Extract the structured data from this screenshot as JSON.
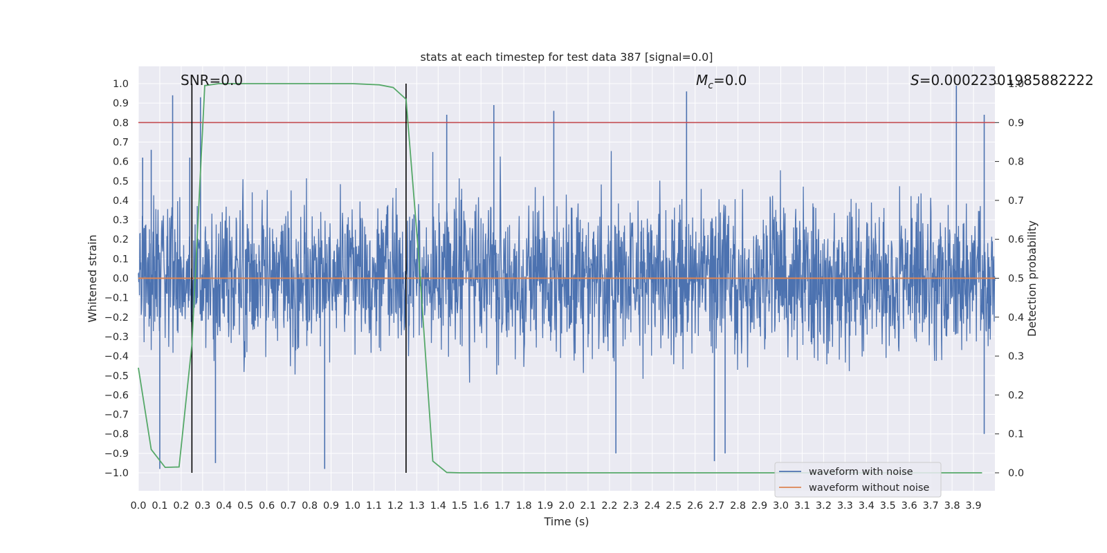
{
  "chart_data": {
    "type": "line",
    "title": "stats at each timestep for test data 387 [signal=0.0]",
    "xlabel": "Time (s)",
    "ylabel": "Whitened strain",
    "y2label": "Detection probability",
    "xlim": [
      0.0,
      4.0
    ],
    "ylim": [
      -1.1,
      1.1
    ],
    "y2lim": [
      -0.05,
      1.05
    ],
    "xticks": [
      "0.0",
      "0.1",
      "0.2",
      "0.3",
      "0.4",
      "0.5",
      "0.6",
      "0.7",
      "0.8",
      "0.9",
      "1.0",
      "1.1",
      "1.2",
      "1.3",
      "1.4",
      "1.5",
      "1.6",
      "1.7",
      "1.8",
      "1.9",
      "2.0",
      "2.1",
      "2.2",
      "2.3",
      "2.4",
      "2.5",
      "2.6",
      "2.7",
      "2.8",
      "2.9",
      "3.0",
      "3.1",
      "3.2",
      "3.3",
      "3.4",
      "3.5",
      "3.6",
      "3.7",
      "3.8",
      "3.9"
    ],
    "yticks": [
      "1.0",
      "0.9",
      "0.8",
      "0.7",
      "0.6",
      "0.5",
      "0.4",
      "0.3",
      "0.2",
      "0.1",
      "0.0",
      "−0.1",
      "−0.2",
      "−0.3",
      "−0.4",
      "−0.5",
      "−0.6",
      "−0.7",
      "−0.8",
      "−0.9",
      "−1.0"
    ],
    "y2ticks": [
      "1.0",
      "0.9",
      "0.8",
      "0.7",
      "0.6",
      "0.5",
      "0.4",
      "0.3",
      "0.2",
      "0.1",
      "0.0"
    ],
    "grid": true,
    "legend_position": "lower-right",
    "annotations": {
      "snr": "SNR=0.0",
      "mc_symbol": "M",
      "mc_sub": "c",
      "mc_value": "=0.0",
      "s_symbol": "S",
      "s_value": "=0.00022301985882222"
    },
    "vlines_x": [
      0.25,
      1.25
    ],
    "threshold_y2": 0.9,
    "series": [
      {
        "name": "waveform with noise",
        "color": "#4c72b0",
        "kind": "noise",
        "amplitude_envelope": 0.45,
        "peak_values": [
          {
            "x": 0.02,
            "y": 0.62
          },
          {
            "x": 0.06,
            "y": 0.66
          },
          {
            "x": 0.1,
            "y": -0.98
          },
          {
            "x": 0.16,
            "y": 0.94
          },
          {
            "x": 0.24,
            "y": 0.62
          },
          {
            "x": 0.29,
            "y": 0.93
          },
          {
            "x": 0.36,
            "y": -0.95
          },
          {
            "x": 0.87,
            "y": -0.98
          },
          {
            "x": 1.44,
            "y": 0.84
          },
          {
            "x": 1.66,
            "y": 0.89
          },
          {
            "x": 1.94,
            "y": 0.86
          },
          {
            "x": 2.23,
            "y": -0.9
          },
          {
            "x": 2.56,
            "y": 0.96
          },
          {
            "x": 2.69,
            "y": -0.94
          },
          {
            "x": 2.74,
            "y": -0.9
          },
          {
            "x": 3.82,
            "y": 0.99
          },
          {
            "x": 3.95,
            "y": 0.84
          },
          {
            "x": 3.95,
            "y": -0.8
          }
        ]
      },
      {
        "name": "waveform without noise",
        "color": "#dd8452",
        "kind": "flat",
        "value": 0.0
      },
      {
        "name": "detection probability",
        "color": "#55a868",
        "axis": "y2",
        "x": [
          0.0,
          0.06,
          0.125,
          0.19,
          0.25,
          0.31,
          0.375,
          0.5,
          0.625,
          0.75,
          0.875,
          1.0,
          1.125,
          1.19,
          1.25,
          1.31,
          1.375,
          1.44,
          1.5,
          1.75,
          2.0,
          2.5,
          3.0,
          3.5,
          3.94
        ],
        "y": [
          0.27,
          0.06,
          0.014,
          0.015,
          0.33,
          0.995,
          1.0,
          1.0,
          1.0,
          1.0,
          1.0,
          1.0,
          0.997,
          0.99,
          0.96,
          0.55,
          0.03,
          0.001,
          0.0,
          0.0,
          0.0,
          0.0,
          0.0,
          0.0,
          0.0
        ]
      }
    ],
    "threshold_color": "#c44e52"
  }
}
